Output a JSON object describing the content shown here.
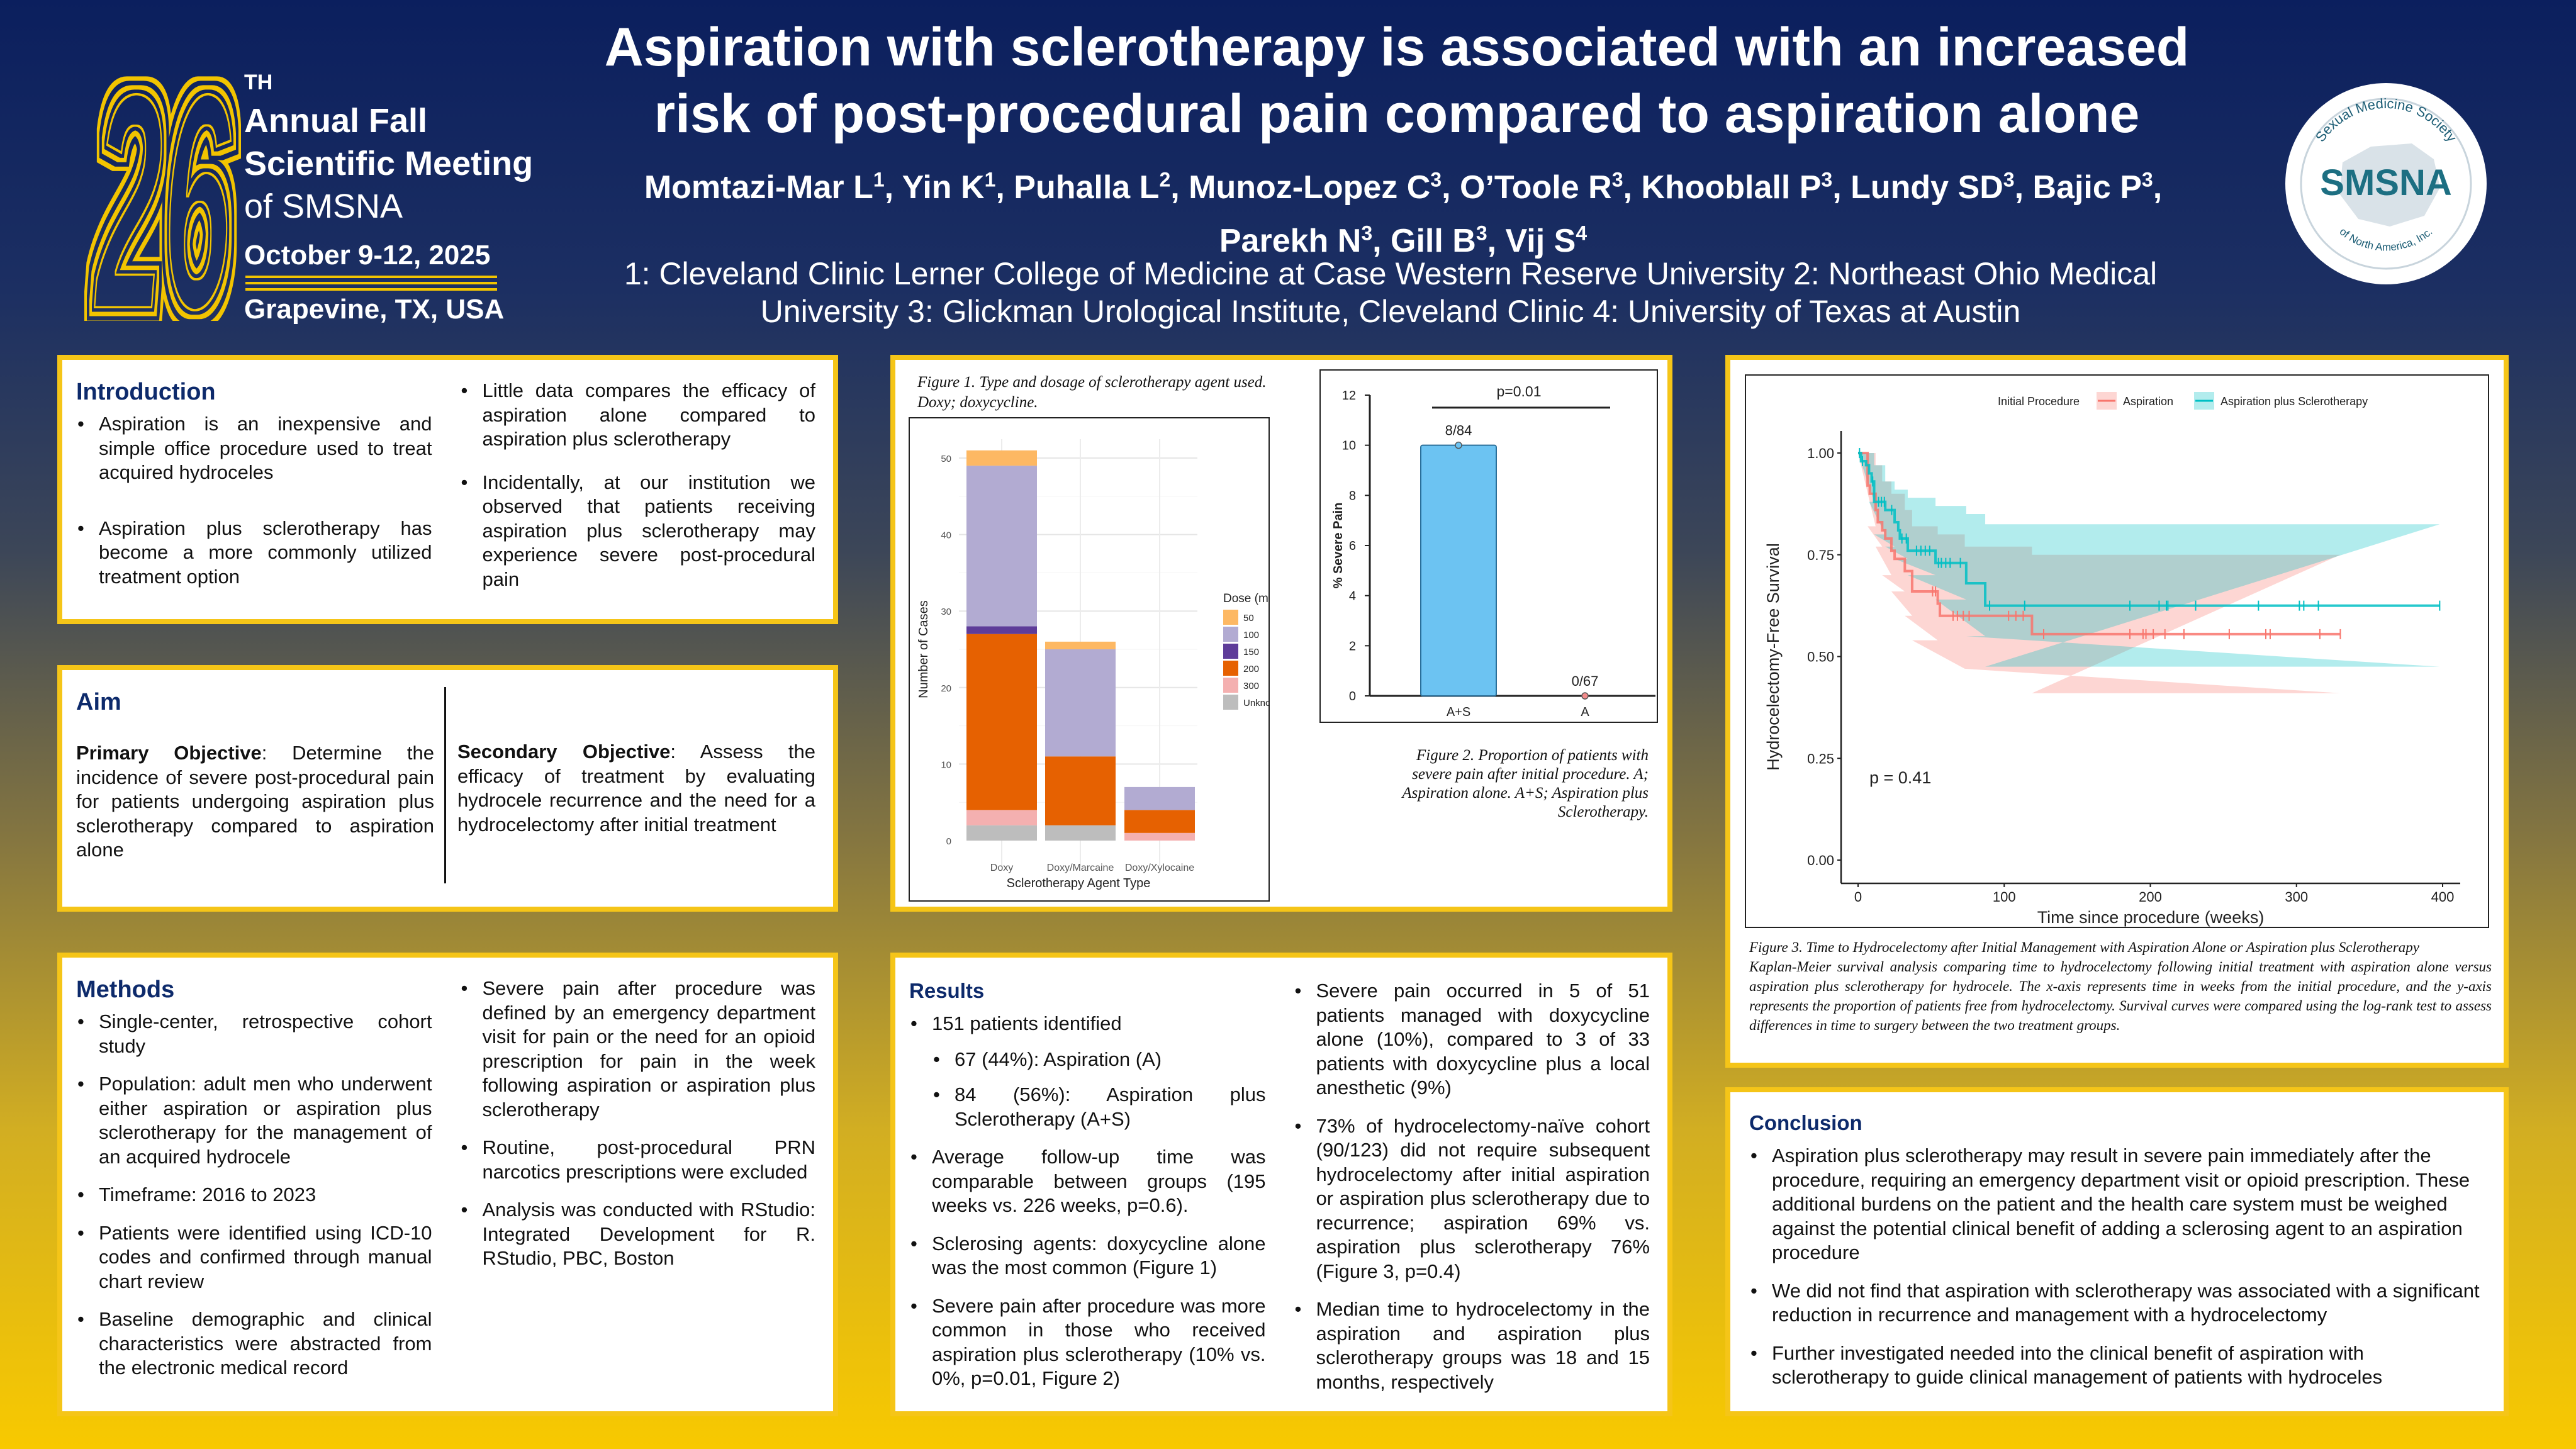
{
  "header": {
    "title_line1": "Aspiration with sclerotherapy is associated with an increased",
    "title_line2": "risk of post-procedural pain compared to aspiration alone",
    "authors": [
      {
        "name": "Momtazi-Mar L",
        "sup": "1",
        "sep": ", "
      },
      {
        "name": "Yin K",
        "sup": "1",
        "sep": ", "
      },
      {
        "name": "Puhalla L",
        "sup": "2",
        "sep": ", "
      },
      {
        "name": "Munoz-Lopez C",
        "sup": "3",
        "sep": ", "
      },
      {
        "name": "O’Toole R",
        "sup": "3",
        "sep": ", "
      },
      {
        "name": "Khooblall P",
        "sup": "3",
        "sep": ", "
      },
      {
        "name": "Lundy SD",
        "sup": "3",
        "sep": ", "
      },
      {
        "name": "Bajic P",
        "sup": "3",
        "sep": ", "
      },
      {
        "name": "Parekh N",
        "sup": "3",
        "sep": ", "
      },
      {
        "name": "Gill B",
        "sup": "3",
        "sep": ", "
      },
      {
        "name": "Vij S",
        "sup": "4",
        "sep": ""
      }
    ],
    "affiliations_line1": "1: Cleveland Clinic Lerner College of Medicine at Case Western Reserve University 2: Northeast Ohio Medical",
    "affiliations_line2": "University 3: Glickman Urological Institute, Cleveland Clinic 4: University of Texas at Austin"
  },
  "meeting_logo": {
    "number": "26",
    "ordinal": "TH",
    "line1": "Annual Fall",
    "line2": "Scientific Meeting",
    "line3": "of SMSNA",
    "dates": "October 9-12, 2025",
    "location": "Grapevine, TX, USA"
  },
  "society_logo": {
    "acronym": "SMSNA",
    "arc_top": "Sexual Medicine Society",
    "arc_bottom": "of North America, Inc."
  },
  "introduction": {
    "heading": "Introduction",
    "left": [
      "Aspiration is an inexpensive and simple office procedure used to treat acquired hydroceles",
      "Aspiration plus sclerotherapy has become a more commonly utilized treatment option"
    ],
    "right": [
      "Little data compares the efficacy of aspiration alone compared to aspiration plus sclerotherapy",
      "Incidentally, at our institution we observed that patients receiving aspiration plus sclerotherapy may experience severe post-procedural pain"
    ]
  },
  "aim": {
    "heading": "Aim",
    "primary_label": "Primary Objective",
    "primary_text": ": Determine the incidence of severe post-procedural pain for patients undergoing aspiration plus sclerotherapy compared to aspiration alone",
    "secondary_label": "Secondary Objective",
    "secondary_text": ": Assess the efficacy of treatment by evaluating hydrocele recurrence and the need for a hydrocelectomy after initial treatment"
  },
  "methods": {
    "heading": "Methods",
    "left": [
      "Single-center, retrospective cohort study",
      "Population: adult men who underwent either aspiration or aspiration plus sclerotherapy for the management of an acquired hydrocele",
      "Timeframe: 2016 to 2023",
      "Patients were identified using ICD-10 codes and confirmed through manual chart review",
      "Baseline demographic and clinical characteristics were abstracted from the electronic medical record"
    ],
    "right": [
      "Severe pain after procedure was defined by an emergency department visit for pain or the need for an opioid prescription for pain in the week following aspiration or aspiration plus sclerotherapy",
      "Routine, post-procedural PRN narcotics prescriptions were excluded",
      "Analysis was conducted with RStudio: Integrated Development for R. RStudio, PBC, Boston"
    ]
  },
  "results": {
    "heading": "Results",
    "left": [
      "151 patients identified",
      "67 (44%): Aspiration (A)",
      "84 (56%): Aspiration plus Sclerotherapy (A+S)",
      "Average follow-up time was comparable between groups (195 weeks vs. 226 weeks, p=0.6).",
      "Sclerosing agents: doxycycline alone was the most common (Figure 1)",
      "Severe pain after procedure was more common in those who received aspiration plus sclerotherapy (10% vs. 0%, p=0.01, Figure 2)"
    ],
    "right": [
      "Severe pain occurred in 5 of 51 patients managed with doxycycline alone (10%), compared to 3 of 33 patients with doxycycline plus a local anesthetic (9%)",
      "73% of hydrocelectomy-naïve cohort (90/123) did not require subsequent hydrocelectomy after initial aspiration or aspiration plus sclerotherapy due to recurrence; aspiration 69% vs. aspiration plus sclerotherapy 76% (Figure 3, p=0.4)",
      "Median time to hydrocelectomy in the aspiration and aspiration plus sclerotherapy groups was 18 and 15 months, respectively"
    ]
  },
  "conclusion": {
    "heading": "Conclusion",
    "items": [
      "Aspiration plus sclerotherapy may result in severe pain immediately after the procedure, requiring an emergency department visit or opioid prescription. These additional burdens on the patient and the health care system must be weighed against the potential clinical benefit of adding a sclerosing agent to an aspiration procedure",
      "We did not find that aspiration with sclerotherapy was associated with a significant reduction in recurrence and management with a hydrocelectomy",
      "Further investigated needed into the clinical benefit of aspiration with sclerotherapy to guide clinical management of patients with hydroceles"
    ]
  },
  "figures": {
    "fig1_caption_line1": "Figure 1. Type and dosage of sclerotherapy agent used.",
    "fig1_caption_line2": "Doxy; doxycycline.",
    "fig2_caption_line1": "Figure 2. Proportion of patients with",
    "fig2_caption_line2": "severe pain after initial procedure. A;",
    "fig2_caption_line3": "Aspiration alone. A+S; Aspiration plus",
    "fig2_caption_line4": "Sclerotherapy.",
    "fig3_caption_line1": "Figure 3. Time to Hydrocelectomy after Initial Management with Aspiration Alone or Aspiration plus Sclerotherapy",
    "fig3_caption_line2": "Kaplan-Meier survival analysis comparing time to hydrocelectomy following initial treatment with aspiration alone versus aspiration plus sclerotherapy for hydrocele. The x-axis represents time in weeks from the initial procedure, and the y-axis represents the proportion of patients free from hydrocelectomy. Survival curves were compared using the log-rank test to assess differences in time to surgery between the two treatment groups."
  },
  "chart_data": [
    {
      "type": "bar",
      "stacked": true,
      "title": "Figure 1. Type and dosage of sclerotherapy agent used.",
      "categories": [
        "Doxy",
        "Doxy/Marcaine",
        "Doxy/Xylocaine"
      ],
      "xlabel": "Sclerotherapy Agent Type",
      "ylabel": "Number of Cases",
      "ylim": [
        0,
        53
      ],
      "yticks": [
        "0",
        "10",
        "20",
        "30",
        "40",
        "50"
      ],
      "grid": true,
      "legend_title": "Dose (mg)",
      "legend_position": "right",
      "series": [
        {
          "name": "Unknown",
          "values": [
            2,
            2,
            0
          ],
          "color": "#bdbdbd"
        },
        {
          "name": "300",
          "values": [
            2,
            0,
            1
          ],
          "color": "#f4b0b0"
        },
        {
          "name": "200",
          "values": [
            23,
            9,
            3
          ],
          "color": "#e66101"
        },
        {
          "name": "150",
          "values": [
            1,
            0,
            0
          ],
          "color": "#5e3c99"
        },
        {
          "name": "100",
          "values": [
            21,
            14,
            3
          ],
          "color": "#b2abd2"
        },
        {
          "name": "50",
          "values": [
            2,
            1,
            0
          ],
          "color": "#fdb863"
        }
      ],
      "legend_order": [
        "50",
        "100",
        "150",
        "200",
        "300",
        "Unknown"
      ]
    },
    {
      "type": "bar",
      "categories": [
        "A+S",
        "A"
      ],
      "values": [
        10,
        0
      ],
      "data_labels": [
        "8/84",
        "0/67"
      ],
      "colors": [
        "#6cc3f2",
        "#f28b8b"
      ],
      "ylabel": "% Severe Pain",
      "ylim": [
        0,
        12
      ],
      "yticks": [
        "0",
        "2",
        "4",
        "6",
        "8",
        "10",
        "12"
      ],
      "annotation": "p=0.01"
    },
    {
      "type": "line",
      "subtype": "kaplan-meier",
      "xlabel": "Time since procedure (weeks)",
      "ylabel": "Hydrocelectomy-Free Survival",
      "xlim": [
        -20,
        420
      ],
      "ylim": [
        -0.03,
        1.05
      ],
      "xticks": [
        "0",
        "100",
        "200",
        "300",
        "400"
      ],
      "yticks": [
        "0.00",
        "0.25",
        "0.50",
        "0.75",
        "1.00"
      ],
      "legend_title": "Initial Procedure",
      "legend_position": "top",
      "annotation": "p = 0.41",
      "series": [
        {
          "name": "Aspiration",
          "color": "#f8766d",
          "band_color": "#f8766d",
          "steps": [
            [
              0,
              1
            ],
            [
              6.5,
              0.92
            ],
            [
              8,
              0.9
            ],
            [
              12,
              0.86
            ],
            [
              13.5,
              0.83
            ],
            [
              16.5,
              0.81
            ],
            [
              18.6,
              0.79
            ],
            [
              22.8,
              0.76
            ],
            [
              25,
              0.74
            ],
            [
              32,
              0.71
            ],
            [
              37,
              0.66
            ],
            [
              54.5,
              0.63
            ],
            [
              56,
              0.6
            ],
            [
              119,
              0.555
            ]
          ],
          "end": 330,
          "ci": [
            [
              0,
              1,
              1
            ],
            [
              6.5,
              0.82,
              1
            ],
            [
              12,
              0.77,
              0.97
            ],
            [
              16.5,
              0.7,
              0.93
            ],
            [
              22.8,
              0.66,
              0.9
            ],
            [
              32,
              0.6,
              0.86
            ],
            [
              37,
              0.54,
              0.82
            ],
            [
              54.5,
              0.47,
              0.8
            ],
            [
              73,
              0.47,
              0.77
            ],
            [
              119,
              0.41,
              0.75
            ]
          ],
          "censor": [
            51,
            53,
            65,
            68,
            72,
            76,
            103,
            108,
            113,
            127,
            186,
            195,
            197,
            202,
            210,
            223,
            254,
            279,
            282,
            316,
            330
          ]
        },
        {
          "name": "Aspiration plus Sclerotherapy",
          "color": "#00bfc4",
          "band_color": "#00bfc4",
          "steps": [
            [
              0,
              1
            ],
            [
              2,
              0.98
            ],
            [
              5.5,
              0.97
            ],
            [
              7.5,
              0.95
            ],
            [
              9.3,
              0.93
            ],
            [
              11,
              0.88
            ],
            [
              18.6,
              0.86
            ],
            [
              25,
              0.83
            ],
            [
              27.5,
              0.81
            ],
            [
              28.6,
              0.79
            ],
            [
              34,
              0.76
            ],
            [
              53,
              0.73
            ],
            [
              74,
              0.68
            ],
            [
              87,
              0.625
            ]
          ],
          "end": 398,
          "ci": [
            [
              0,
              1,
              1
            ],
            [
              7.5,
              0.88,
              1
            ],
            [
              11,
              0.8,
              0.97
            ],
            [
              18.6,
              0.77,
              0.93
            ],
            [
              25,
              0.74,
              0.91
            ],
            [
              34,
              0.7,
              0.89
            ],
            [
              53,
              0.64,
              0.87
            ],
            [
              74,
              0.55,
              0.85
            ],
            [
              87,
              0.475,
              0.825
            ]
          ],
          "censor": [
            1,
            3,
            10,
            14,
            16,
            18,
            23,
            30,
            33,
            40,
            43,
            46,
            49,
            55,
            57,
            60,
            63,
            70,
            90,
            114,
            186,
            206,
            211,
            212,
            231,
            274,
            302,
            305,
            315,
            398
          ]
        }
      ]
    }
  ]
}
